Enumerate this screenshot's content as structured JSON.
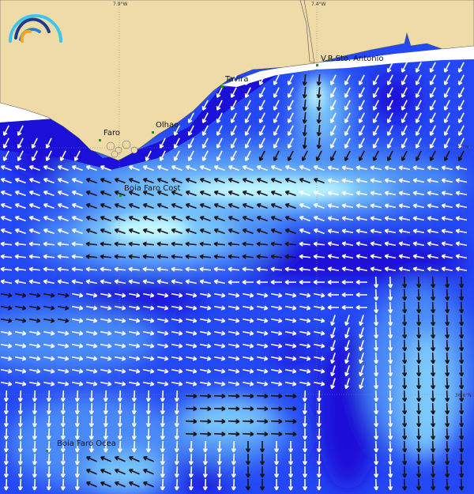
{
  "grid": {
    "lon_labels": [
      "7.9°W",
      "7.4°W"
    ],
    "lat_labels": [
      "37°N",
      "36.6°N"
    ]
  },
  "places": {
    "vrsa": "V.R.Sto. Antonio",
    "tavira": "Tavira",
    "olhao": "Olhao",
    "faro": "Faro",
    "buoy_coast": "Boia Faro Cost",
    "buoy_ocean": "Boia Faro Ocea"
  },
  "colors": {
    "land": "#eedba8",
    "deep": "#1a10d8",
    "low": "#2448f5",
    "mid": "#4a8af8",
    "high": "#7cc8fb",
    "max": "#c8fbff",
    "arrow_slow": "#ffffff",
    "arrow_fast": "#111111"
  },
  "logo": {
    "icon": "rainbow-arcs-logo"
  }
}
